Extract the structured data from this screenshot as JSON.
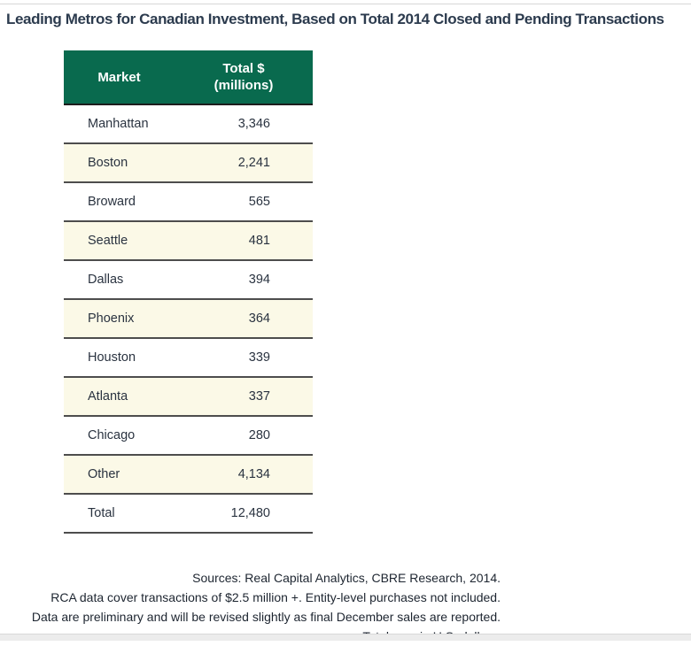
{
  "title": "Leading Metros for Canadian Investment, Based on Total 2014 Closed and Pending Transactions",
  "chart_data": {
    "type": "table",
    "title": "Leading Metros for Canadian Investment, Based on Total 2014 Closed and Pending Transactions",
    "columns": [
      "Market",
      "Total $ (millions)"
    ],
    "header": {
      "market": "Market",
      "total_line1": "Total $",
      "total_line2": "(millions)"
    },
    "rows": [
      [
        "Manhattan",
        "3,346"
      ],
      [
        "Boston",
        "2,241"
      ],
      [
        "Broward",
        "565"
      ],
      [
        "Seattle",
        "481"
      ],
      [
        "Dallas",
        "394"
      ],
      [
        "Phoenix",
        "364"
      ],
      [
        "Houston",
        "339"
      ],
      [
        "Atlanta",
        "337"
      ],
      [
        "Chicago",
        "280"
      ],
      [
        "Other",
        "4,134"
      ],
      [
        "Total",
        "12,480"
      ]
    ],
    "values_numeric": [
      3346,
      2241,
      565,
      481,
      394,
      364,
      339,
      337,
      280,
      4134,
      12480
    ],
    "layout_hints": {
      "stripe_pattern": "alternating white and cream starting with white",
      "value_alignment": "right",
      "market_alignment": "left"
    }
  },
  "footnotes": [
    "Sources: Real Capital Analytics, CBRE Research, 2014.",
    "RCA data cover transactions of $2.5 million +. Entity-level purchases not included.",
    "Data are preliminary and will be revised slightly as final December sales are reported. Totals are in U.S. dollars."
  ],
  "colors": {
    "header_green": "#096a4e",
    "stripe_cream": "#fbf9e7",
    "row_border": "#4d4d4d",
    "title_text": "#2c3b4e",
    "body_text": "#2a3340"
  }
}
